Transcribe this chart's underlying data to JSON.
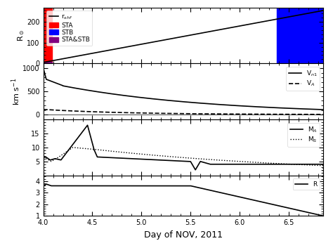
{
  "xmin": 4.0,
  "xmax": 6.85,
  "xlabel": "Day of NOV, 2011",
  "panel1": {
    "ylabel": "R$_\\odot$",
    "ylim": [
      0,
      270
    ],
    "yticks": [
      0,
      100,
      200
    ],
    "sta_xstart": 4.0,
    "sta_xend": 4.09,
    "stb_xstart": 6.38,
    "stb_xend": 6.85,
    "r_shf_start": 5,
    "r_shf_end": 255
  },
  "panel2": {
    "ylabel": "km s$^{-1}$",
    "ylim": [
      -100,
      1100
    ],
    "yticks": [
      0,
      500,
      1000
    ]
  },
  "panel3": {
    "ylim": [
      0,
      20
    ],
    "yticks": [
      5,
      10,
      15
    ],
    "ylabel": ""
  },
  "panel4": {
    "ylim": [
      1,
      4.5
    ],
    "yticks": [
      1,
      2,
      3,
      4
    ],
    "ylabel": ""
  },
  "colors": {
    "sta": "#ff0000",
    "stb": "#0000ff",
    "stab": "#800080",
    "line": "#000000",
    "bg": "#ffffff"
  },
  "legend1_entries": [
    "r$_{shf}$",
    "STA",
    "STB",
    "STA&STB"
  ],
  "legend2_entries": [
    "V$_{n1}$",
    "V$_{A}$"
  ],
  "legend3_entries": [
    "M$_{A}$",
    "M$_{S}$"
  ],
  "legend4_entries": [
    "R"
  ]
}
